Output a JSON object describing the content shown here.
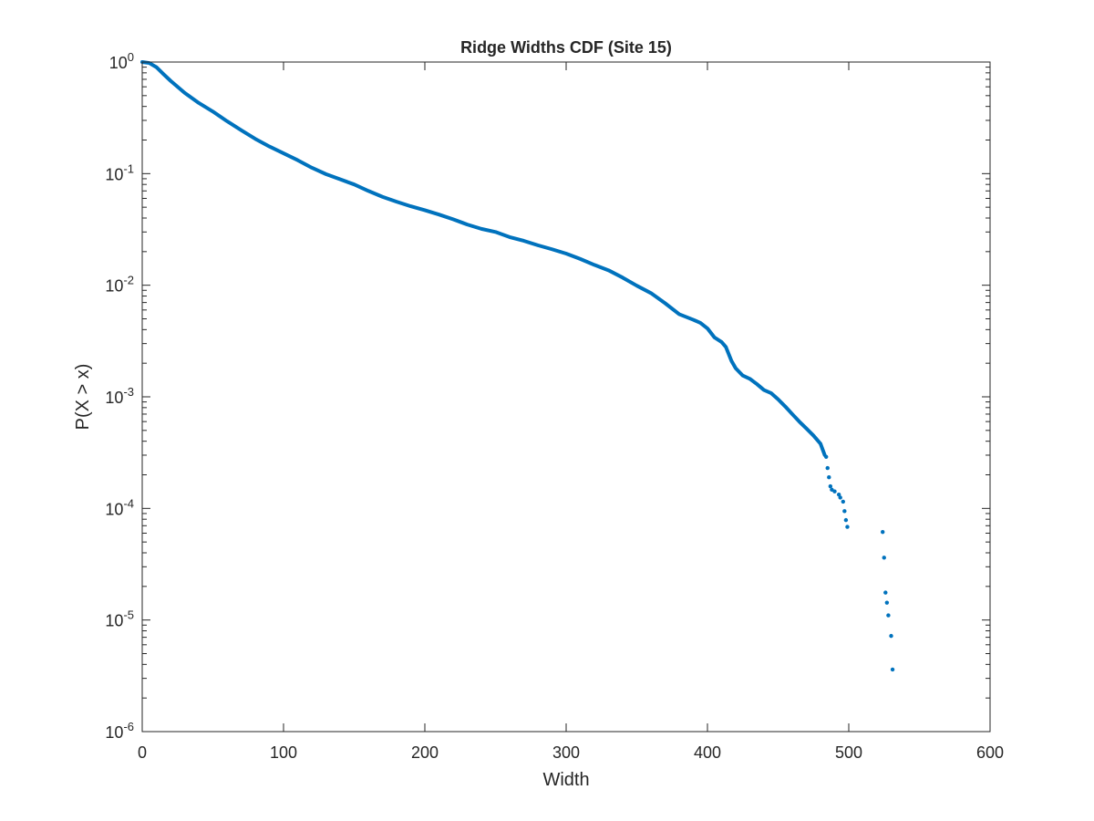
{
  "chart_data": {
    "type": "scatter",
    "title": "Ridge Widths CDF (Site 15)",
    "xlabel": "Width",
    "ylabel": "P(X > x)",
    "xlim": [
      0,
      600
    ],
    "ylim": [
      1e-06,
      1
    ],
    "yscale": "log",
    "grid": false,
    "color": "#0072BD",
    "x_ticks": [
      "0",
      "100",
      "200",
      "300",
      "400",
      "500",
      "600"
    ],
    "y_ticks": [
      {
        "base": "10",
        "exp": "-6"
      },
      {
        "base": "10",
        "exp": "-5"
      },
      {
        "base": "10",
        "exp": "-4"
      },
      {
        "base": "10",
        "exp": "-3"
      },
      {
        "base": "10",
        "exp": "-2"
      },
      {
        "base": "10",
        "exp": "-1"
      },
      {
        "base": "10",
        "exp": "0"
      }
    ],
    "curve_points": [
      [
        0,
        1.0
      ],
      [
        5,
        0.98
      ],
      [
        10,
        0.9
      ],
      [
        15,
        0.78
      ],
      [
        20,
        0.68
      ],
      [
        30,
        0.53
      ],
      [
        40,
        0.43
      ],
      [
        50,
        0.36
      ],
      [
        60,
        0.295
      ],
      [
        70,
        0.245
      ],
      [
        80,
        0.205
      ],
      [
        90,
        0.175
      ],
      [
        100,
        0.152
      ],
      [
        110,
        0.132
      ],
      [
        120,
        0.113
      ],
      [
        130,
        0.099
      ],
      [
        140,
        0.089
      ],
      [
        150,
        0.08
      ],
      [
        160,
        0.07
      ],
      [
        170,
        0.062
      ],
      [
        180,
        0.056
      ],
      [
        190,
        0.051
      ],
      [
        200,
        0.047
      ],
      [
        210,
        0.043
      ],
      [
        220,
        0.039
      ],
      [
        230,
        0.035
      ],
      [
        240,
        0.032
      ],
      [
        250,
        0.03
      ],
      [
        260,
        0.027
      ],
      [
        270,
        0.025
      ],
      [
        280,
        0.0228
      ],
      [
        290,
        0.021
      ],
      [
        300,
        0.0192
      ],
      [
        310,
        0.0172
      ],
      [
        320,
        0.0152
      ],
      [
        330,
        0.0136
      ],
      [
        340,
        0.0117
      ],
      [
        350,
        0.0099
      ],
      [
        360,
        0.0085
      ],
      [
        370,
        0.0069
      ],
      [
        380,
        0.0055
      ],
      [
        390,
        0.0049
      ],
      [
        395,
        0.0046
      ],
      [
        400,
        0.0041
      ],
      [
        405,
        0.0034
      ],
      [
        410,
        0.0031
      ],
      [
        413,
        0.0028
      ],
      [
        417,
        0.0021
      ],
      [
        420,
        0.0018
      ],
      [
        425,
        0.00155
      ],
      [
        430,
        0.00145
      ],
      [
        435,
        0.0013
      ],
      [
        440,
        0.00115
      ],
      [
        445,
        0.00108
      ],
      [
        450,
        0.00095
      ],
      [
        455,
        0.00082
      ],
      [
        460,
        0.0007
      ],
      [
        465,
        0.0006
      ],
      [
        470,
        0.00052
      ],
      [
        475,
        0.00045
      ],
      [
        480,
        0.00038
      ],
      [
        483,
        0.0003
      ]
    ],
    "tail_points": [
      [
        484,
        0.00029
      ],
      [
        485,
        0.00023
      ],
      [
        486,
        0.00019
      ],
      [
        487,
        0.000158
      ],
      [
        488,
        0.000147
      ],
      [
        490,
        0.000142
      ],
      [
        493,
        0.000133
      ],
      [
        494,
        0.000125
      ],
      [
        496,
        0.000115
      ],
      [
        497,
        9.45e-05
      ],
      [
        498,
        7.86e-05
      ],
      [
        499,
        6.83e-05
      ],
      [
        524,
        6.15e-05
      ],
      [
        525,
        3.62e-05
      ],
      [
        526,
        1.76e-05
      ],
      [
        527,
        1.43e-05
      ],
      [
        528,
        1.1e-05
      ],
      [
        530,
        7.2e-06
      ],
      [
        531,
        3.6e-06
      ]
    ]
  }
}
